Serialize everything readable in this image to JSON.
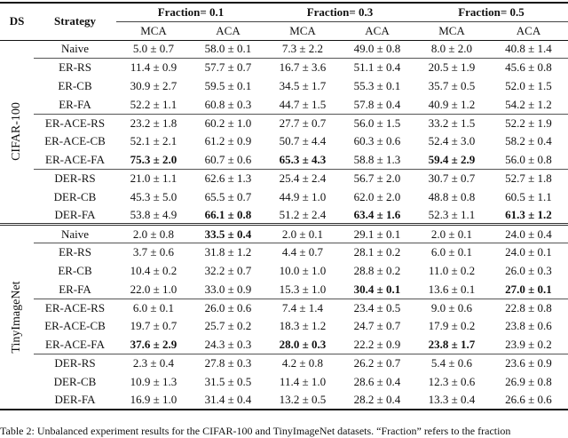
{
  "header": {
    "ds": "DS",
    "strategy": "Strategy",
    "fractions": [
      "Fraction= 0.1",
      "Fraction= 0.3",
      "Fraction= 0.5"
    ],
    "metrics": [
      "MCA",
      "ACA",
      "MCA",
      "ACA",
      "MCA",
      "ACA"
    ]
  },
  "groups": [
    {
      "dataset": "CIFAR-100",
      "rows": [
        {
          "strategy": "Naive",
          "values": [
            "5.0 ± 0.7",
            "58.0 ± 0.1",
            "7.3 ± 2.2",
            "49.0 ± 0.8",
            "8.0 ± 2.0",
            "40.8 ± 1.4"
          ],
          "bold": []
        },
        {
          "strategy": "ER-RS",
          "values": [
            "11.4 ± 0.9",
            "57.7 ± 0.7",
            "16.7 ± 3.6",
            "51.1 ± 0.4",
            "20.5 ± 1.9",
            "45.6 ± 0.8"
          ],
          "bold": []
        },
        {
          "strategy": "ER-CB",
          "values": [
            "30.9 ± 2.7",
            "59.5 ± 0.1",
            "34.5 ± 1.7",
            "55.3 ± 0.1",
            "35.7 ± 0.5",
            "52.0 ± 1.5"
          ],
          "bold": []
        },
        {
          "strategy": "ER-FA",
          "values": [
            "52.2 ± 1.1",
            "60.8 ± 0.3",
            "44.7 ± 1.5",
            "57.8 ± 0.4",
            "40.9 ± 1.2",
            "54.2 ± 1.2"
          ],
          "bold": []
        },
        {
          "strategy": "ER-ACE-RS",
          "values": [
            "23.2 ± 1.8",
            "60.2 ± 1.0",
            "27.7 ± 0.7",
            "56.0 ± 1.5",
            "33.2 ± 1.5",
            "52.2 ± 1.9"
          ],
          "bold": []
        },
        {
          "strategy": "ER-ACE-CB",
          "values": [
            "52.1 ± 2.1",
            "61.2 ± 0.9",
            "50.7 ± 4.4",
            "60.3 ± 0.6",
            "52.4 ± 3.0",
            "58.2 ± 0.4"
          ],
          "bold": []
        },
        {
          "strategy": "ER-ACE-FA",
          "values": [
            "75.3 ± 2.0",
            "60.7 ± 0.6",
            "65.3 ± 4.3",
            "58.8 ± 1.3",
            "59.4 ± 2.9",
            "56.0 ± 0.8"
          ],
          "bold": [
            0,
            2,
            4
          ]
        },
        {
          "strategy": "DER-RS",
          "values": [
            "21.0 ± 1.1",
            "62.6 ± 1.3",
            "25.4 ± 2.4",
            "56.7 ± 2.0",
            "30.7 ± 0.7",
            "52.7 ± 1.8"
          ],
          "bold": []
        },
        {
          "strategy": "DER-CB",
          "values": [
            "45.3 ± 5.0",
            "65.5 ± 0.7",
            "44.9 ± 1.0",
            "62.0 ± 2.0",
            "48.8 ± 0.8",
            "60.5 ± 1.1"
          ],
          "bold": []
        },
        {
          "strategy": "DER-FA",
          "values": [
            "53.8 ± 4.9",
            "66.1 ± 0.8",
            "51.2 ± 2.4",
            "63.4 ± 1.6",
            "52.3 ± 1.1",
            "61.3 ± 1.2"
          ],
          "bold": [
            1,
            3,
            5
          ]
        }
      ]
    },
    {
      "dataset": "TinyImageNet",
      "rows": [
        {
          "strategy": "Naive",
          "values": [
            "2.0 ± 0.8",
            "33.5 ± 0.4",
            "2.0 ± 0.1",
            "29.1 ± 0.1",
            "2.0 ± 0.1",
            "24.0 ± 0.4"
          ],
          "bold": [
            1
          ]
        },
        {
          "strategy": "ER-RS",
          "values": [
            "3.7 ± 0.6",
            "31.8 ± 1.2",
            "4.4 ± 0.7",
            "28.1 ± 0.2",
            "6.0 ± 0.1",
            "24.0 ± 0.1"
          ],
          "bold": []
        },
        {
          "strategy": "ER-CB",
          "values": [
            "10.4 ± 0.2",
            "32.2 ± 0.7",
            "10.0 ± 1.0",
            "28.8 ± 0.2",
            "11.0 ± 0.2",
            "26.0 ± 0.3"
          ],
          "bold": []
        },
        {
          "strategy": "ER-FA",
          "values": [
            "22.0 ± 1.0",
            "33.0 ± 0.9",
            "15.3 ± 1.0",
            "30.4 ± 0.1",
            "13.6 ± 0.1",
            "27.0 ± 0.1"
          ],
          "bold": [
            3,
            5
          ]
        },
        {
          "strategy": "ER-ACE-RS",
          "values": [
            "6.0 ± 0.1",
            "26.0 ± 0.6",
            "7.4 ± 1.4",
            "23.4 ± 0.5",
            "9.0 ± 0.6",
            "22.8 ± 0.8"
          ],
          "bold": []
        },
        {
          "strategy": "ER-ACE-CB",
          "values": [
            "19.7 ± 0.7",
            "25.7 ± 0.2",
            "18.3 ± 1.2",
            "24.7 ± 0.7",
            "17.9 ± 0.2",
            "23.8 ± 0.6"
          ],
          "bold": []
        },
        {
          "strategy": "ER-ACE-FA",
          "values": [
            "37.6 ± 2.9",
            "24.3 ± 0.3",
            "28.0 ± 0.3",
            "22.2 ± 0.9",
            "23.8 ± 1.7",
            "23.9 ± 0.2"
          ],
          "bold": [
            0,
            2,
            4
          ]
        },
        {
          "strategy": "DER-RS",
          "values": [
            "2.3 ± 0.4",
            "27.8 ± 0.3",
            "4.2 ± 0.8",
            "26.2 ± 0.7",
            "5.4 ± 0.6",
            "23.6 ± 0.9"
          ],
          "bold": []
        },
        {
          "strategy": "DER-CB",
          "values": [
            "10.9 ± 1.3",
            "31.5 ± 0.5",
            "11.4 ± 1.0",
            "28.6 ± 0.4",
            "12.3 ± 0.6",
            "26.9 ± 0.8"
          ],
          "bold": []
        },
        {
          "strategy": "DER-FA",
          "values": [
            "16.9 ± 1.0",
            "31.4 ± 0.4",
            "13.2 ± 0.5",
            "28.2 ± 0.4",
            "13.3 ± 0.4",
            "26.6 ± 0.6"
          ],
          "bold": []
        }
      ]
    }
  ],
  "caption": "Table 2: Unbalanced experiment results for the CIFAR-100 and TinyImageNet datasets. “Fraction” refers to the fraction"
}
